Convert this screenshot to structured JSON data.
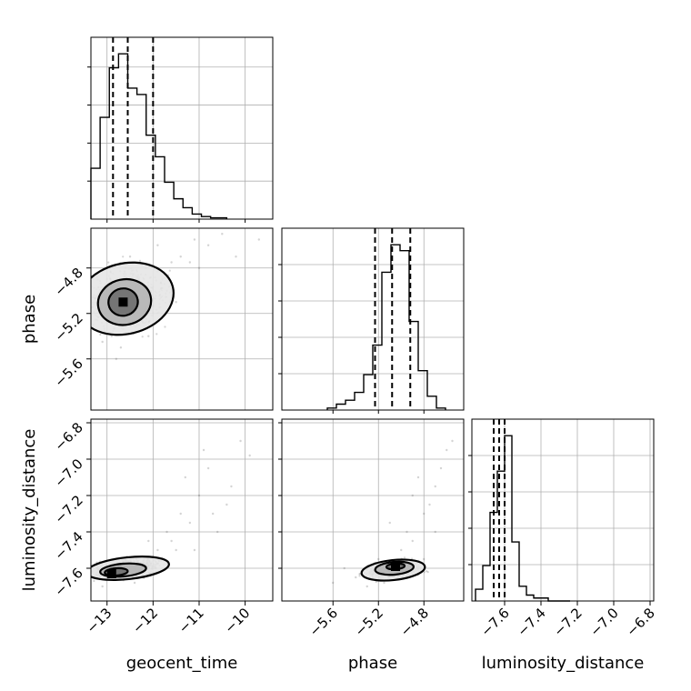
{
  "chart_data": {
    "type": "corner",
    "grid": true,
    "parameters": [
      {
        "key": "geocent_time",
        "label": "geocent_time",
        "range": [
          -13.35,
          -9.4
        ],
        "ticks": [
          -13,
          -12,
          -11,
          -10
        ],
        "tick_labels": [
          "−13",
          "−12",
          "−11",
          "−10"
        ],
        "quantiles": [
          -12.87,
          -12.55,
          -12.0
        ],
        "histogram": {
          "edges": [
            -13.35,
            -13.15,
            -12.95,
            -12.75,
            -12.55,
            -12.35,
            -12.15,
            -11.95,
            -11.75,
            -11.55,
            -11.35,
            -11.15,
            -10.95,
            -10.75,
            -10.4
          ],
          "counts": [
            40,
            80,
            119,
            130,
            103,
            98,
            66,
            49,
            29,
            16,
            9,
            4,
            2,
            1
          ]
        }
      },
      {
        "key": "phase",
        "label": "phase",
        "range": [
          -6.05,
          -4.45
        ],
        "ticks": [
          -5.6,
          -5.2,
          -4.8
        ],
        "tick_labels": [
          "−5.6",
          "−5.2",
          "−4.8"
        ],
        "quantiles": [
          -5.23,
          -5.08,
          -4.92
        ],
        "histogram": {
          "edges": [
            -5.65,
            -5.57,
            -5.49,
            -5.41,
            -5.33,
            -5.25,
            -5.17,
            -5.09,
            -5.01,
            -4.93,
            -4.85,
            -4.77,
            -4.69,
            -4.61
          ],
          "counts": [
            1,
            3,
            5,
            9,
            18,
            33,
            70,
            84,
            81,
            45,
            20,
            7,
            1
          ]
        }
      },
      {
        "key": "luminosity_distance",
        "label": "luminosity_distance",
        "range": [
          -7.78,
          -6.78
        ],
        "ticks": [
          -7.6,
          -7.4,
          -7.2,
          -7.0,
          -6.8
        ],
        "tick_labels": [
          "−7.6",
          "−7.4",
          "−7.2",
          "−7.0",
          "−6.8"
        ],
        "quantiles": [
          -7.66,
          -7.63,
          -7.6
        ],
        "histogram": {
          "edges": [
            -7.76,
            -7.72,
            -7.68,
            -7.64,
            -7.6,
            -7.56,
            -7.52,
            -7.48,
            -7.44,
            -7.4,
            -7.36,
            -7.32,
            -7.28,
            -7.24
          ],
          "counts": [
            4,
            12,
            30,
            44,
            56,
            20,
            5,
            2,
            1,
            1,
            0,
            0,
            0
          ]
        }
      }
    ],
    "pairs": [
      {
        "x": "geocent_time",
        "y": "phase",
        "peak": [
          -12.65,
          -5.1
        ],
        "contours": [
          {
            "center": [
              -12.6,
              -5.07
            ],
            "rx": 1.06,
            "ry": 0.31,
            "tilt": 14
          },
          {
            "center": [
              -12.62,
              -5.1
            ],
            "rx": 0.58,
            "ry": 0.2,
            "tilt": 12
          },
          {
            "center": [
              -12.65,
              -5.1
            ],
            "rx": 0.32,
            "ry": 0.12,
            "tilt": 10
          }
        ],
        "scatter": [
          [
            -13.1,
            -5.2
          ],
          [
            -12.8,
            -5.3
          ],
          [
            -12.2,
            -4.9
          ],
          [
            -11.9,
            -4.8
          ],
          [
            -11.6,
            -4.75
          ],
          [
            -12.9,
            -5.4
          ],
          [
            -12.4,
            -5.0
          ],
          [
            -11.8,
            -4.9
          ],
          [
            -12.0,
            -5.2
          ],
          [
            -13.2,
            -5.1
          ],
          [
            -11.4,
            -4.7
          ],
          [
            -11.2,
            -4.75
          ],
          [
            -12.6,
            -4.8
          ],
          [
            -13.0,
            -4.9
          ],
          [
            -11.7,
            -5.0
          ],
          [
            -12.3,
            -5.3
          ],
          [
            -10.8,
            -4.6
          ],
          [
            -10.5,
            -4.5
          ],
          [
            -11.0,
            -4.8
          ],
          [
            -12.7,
            -5.5
          ],
          [
            -13.3,
            -5.3
          ],
          [
            -11.5,
            -5.1
          ],
          [
            -12.5,
            -4.7
          ],
          [
            -11.1,
            -4.55
          ],
          [
            -10.2,
            -4.7
          ],
          [
            -9.7,
            -4.55
          ],
          [
            -12.1,
            -5.4
          ],
          [
            -13.1,
            -5.45
          ],
          [
            -11.9,
            -4.6
          ],
          [
            -12.8,
            -5.6
          ]
        ]
      },
      {
        "x": "geocent_time",
        "y": "luminosity_distance",
        "peak": [
          -12.9,
          -7.63
        ],
        "contours": [
          {
            "center": [
              -12.55,
              -7.6
            ],
            "rx": 0.9,
            "ry": 0.06,
            "tilt": 6
          },
          {
            "center": [
              -12.65,
              -7.61
            ],
            "rx": 0.5,
            "ry": 0.035,
            "tilt": 5
          },
          {
            "center": [
              -12.8,
              -7.62
            ],
            "rx": 0.25,
            "ry": 0.02,
            "tilt": 4
          }
        ],
        "scatter": [
          [
            -12.0,
            -7.55
          ],
          [
            -11.6,
            -7.45
          ],
          [
            -11.2,
            -7.35
          ],
          [
            -11.0,
            -7.2
          ],
          [
            -10.8,
            -7.05
          ],
          [
            -10.3,
            -7.15
          ],
          [
            -10.1,
            -6.9
          ],
          [
            -11.5,
            -7.5
          ],
          [
            -11.8,
            -7.6
          ],
          [
            -12.2,
            -7.65
          ],
          [
            -13.1,
            -7.7
          ],
          [
            -12.6,
            -7.55
          ],
          [
            -11.4,
            -7.3
          ],
          [
            -10.7,
            -7.3
          ],
          [
            -10.9,
            -6.95
          ],
          [
            -9.9,
            -6.98
          ],
          [
            -11.3,
            -7.1
          ],
          [
            -11.7,
            -7.4
          ],
          [
            -12.4,
            -7.68
          ],
          [
            -10.6,
            -7.4
          ],
          [
            -11.9,
            -7.5
          ],
          [
            -12.9,
            -7.58
          ],
          [
            -11.1,
            -7.5
          ],
          [
            -10.4,
            -7.25
          ],
          [
            -12.1,
            -7.45
          ]
        ]
      },
      {
        "x": "phase",
        "y": "luminosity_distance",
        "peak": [
          -5.05,
          -7.59
        ],
        "contours": [
          {
            "center": [
              -5.07,
              -7.61
            ],
            "rx": 0.28,
            "ry": 0.055,
            "tilt": 6
          },
          {
            "center": [
              -5.06,
              -7.6
            ],
            "rx": 0.17,
            "ry": 0.035,
            "tilt": 5
          },
          {
            "center": [
              -5.05,
              -7.59
            ],
            "rx": 0.08,
            "ry": 0.016,
            "tilt": 4
          }
        ],
        "scatter": [
          [
            -5.4,
            -7.65
          ],
          [
            -5.2,
            -7.55
          ],
          [
            -4.9,
            -7.45
          ],
          [
            -4.8,
            -7.3
          ],
          [
            -4.7,
            -7.15
          ],
          [
            -4.6,
            -6.95
          ],
          [
            -4.55,
            -6.9
          ],
          [
            -5.0,
            -7.5
          ],
          [
            -4.85,
            -7.1
          ],
          [
            -4.75,
            -7.25
          ],
          [
            -5.3,
            -7.7
          ],
          [
            -5.5,
            -7.6
          ],
          [
            -4.95,
            -7.4
          ],
          [
            -4.65,
            -7.05
          ],
          [
            -5.1,
            -7.35
          ],
          [
            -4.7,
            -7.4
          ],
          [
            -5.6,
            -7.68
          ],
          [
            -4.9,
            -7.2
          ],
          [
            -5.15,
            -7.68
          ],
          [
            -4.8,
            -7.55
          ]
        ]
      }
    ]
  }
}
